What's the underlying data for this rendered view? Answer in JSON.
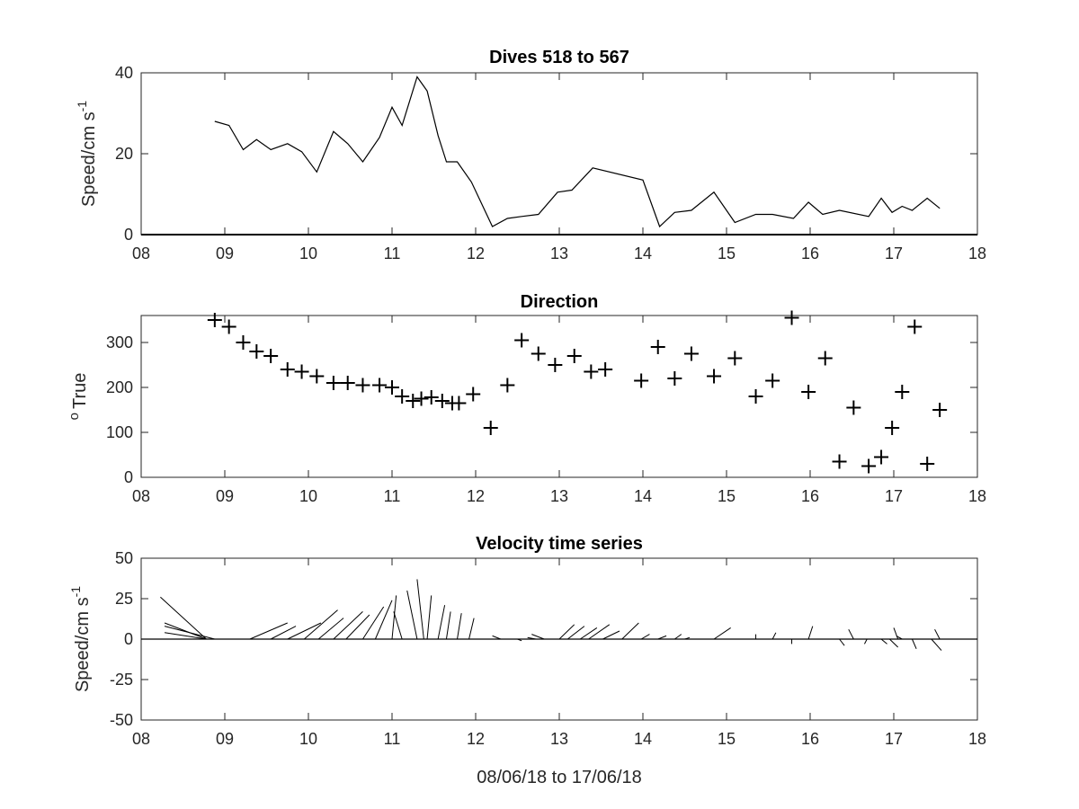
{
  "colors": {
    "line": "#000000",
    "axes": "#262626",
    "background": "#ffffff"
  },
  "xtick_labels": [
    "08",
    "09",
    "10",
    "11",
    "12",
    "13",
    "14",
    "15",
    "16",
    "17",
    "18"
  ],
  "xlabel": "08/06/18 to 17/06/18",
  "chart_data": [
    {
      "type": "line",
      "title": "Dives 518 to 567",
      "ylabel": "Speed/cm s",
      "ylabel_exponent": "-1",
      "xlim": [
        8,
        18
      ],
      "ylim": [
        0,
        40
      ],
      "yticks": [
        0,
        20,
        40
      ],
      "grid": false,
      "x": [
        8.88,
        9.05,
        9.22,
        9.38,
        9.55,
        9.75,
        9.92,
        10.1,
        10.3,
        10.47,
        10.65,
        10.85,
        11.0,
        11.12,
        11.3,
        11.42,
        11.55,
        11.65,
        11.78,
        11.95,
        12.2,
        12.38,
        12.55,
        12.75,
        12.98,
        13.15,
        13.4,
        14.0,
        14.2,
        14.38,
        14.58,
        14.85,
        15.1,
        15.35,
        15.55,
        15.8,
        15.98,
        16.15,
        16.35,
        16.7,
        16.85,
        16.98,
        17.1,
        17.22,
        17.4,
        17.55
      ],
      "y": [
        28,
        27,
        21,
        23.5,
        21,
        22.5,
        20.5,
        15.5,
        25.5,
        22.5,
        18,
        24,
        31.5,
        27,
        39,
        35.5,
        24.5,
        18,
        18,
        13,
        2,
        4,
        4.5,
        5,
        10.5,
        11,
        16.5,
        13.5,
        2,
        5.5,
        6,
        10.5,
        3,
        5,
        5,
        4,
        8,
        5,
        6,
        4.5,
        9,
        5.5,
        7,
        6,
        9,
        6.5
      ],
      "baseline_y": 0
    },
    {
      "type": "scatter",
      "title": "Direction",
      "ylabel": "True",
      "ylabel_prefix": "o",
      "marker": "+",
      "xlim": [
        8,
        18
      ],
      "ylim": [
        0,
        360
      ],
      "yticks": [
        0,
        100,
        200,
        300
      ],
      "grid": false,
      "x": [
        8.88,
        9.05,
        9.22,
        9.38,
        9.55,
        9.75,
        9.92,
        10.1,
        10.3,
        10.47,
        10.65,
        10.85,
        11.0,
        11.12,
        11.25,
        11.35,
        11.47,
        11.6,
        11.72,
        11.8,
        11.97,
        12.18,
        12.38,
        12.55,
        12.75,
        12.95,
        13.18,
        13.38,
        13.55,
        13.98,
        14.18,
        14.38,
        14.58,
        14.85,
        15.1,
        15.35,
        15.55,
        15.78,
        15.98,
        16.18,
        16.35,
        16.52,
        16.7,
        16.85,
        16.98,
        17.1,
        17.25,
        17.4,
        17.55
      ],
      "y": [
        350,
        335,
        300,
        280,
        270,
        240,
        235,
        225,
        210,
        210,
        205,
        205,
        200,
        180,
        170,
        175,
        178,
        170,
        165,
        165,
        185,
        110,
        205,
        305,
        275,
        250,
        270,
        235,
        240,
        215,
        290,
        220,
        275,
        225,
        265,
        180,
        215,
        355,
        190,
        265,
        35,
        155,
        25,
        45,
        110,
        190,
        335,
        30,
        150
      ]
    },
    {
      "type": "quiver",
      "title": "Velocity time series",
      "ylabel": "Speed/cm s",
      "ylabel_exponent": "-1",
      "xlim": [
        8,
        18
      ],
      "ylim": [
        -50,
        50
      ],
      "yticks": [
        -50,
        -25,
        0,
        25,
        50
      ],
      "ytick_labels": [
        "-50",
        "-25",
        "0",
        "25",
        "50"
      ],
      "grid": false,
      "sticks": [
        {
          "x": 8.78,
          "u": 0.55,
          "v": -26
        },
        {
          "x": 8.78,
          "u": 0.5,
          "v": -10
        },
        {
          "x": 8.78,
          "u": 0.5,
          "v": -4
        },
        {
          "x": 8.88,
          "u": 0.6,
          "v": -8
        },
        {
          "x": 9.3,
          "u": -0.45,
          "v": -10
        },
        {
          "x": 9.55,
          "u": -0.3,
          "v": -8
        },
        {
          "x": 9.75,
          "u": -0.4,
          "v": -10
        },
        {
          "x": 9.95,
          "u": -0.4,
          "v": -18
        },
        {
          "x": 10.12,
          "u": -0.3,
          "v": -13
        },
        {
          "x": 10.3,
          "u": -0.35,
          "v": -17
        },
        {
          "x": 10.45,
          "u": -0.28,
          "v": -15
        },
        {
          "x": 10.65,
          "u": -0.25,
          "v": -20
        },
        {
          "x": 10.8,
          "u": -0.2,
          "v": -24
        },
        {
          "x": 11.0,
          "u": -0.05,
          "v": -27
        },
        {
          "x": 11.12,
          "u": 0.1,
          "v": -17
        },
        {
          "x": 11.3,
          "u": 0.12,
          "v": -30
        },
        {
          "x": 11.38,
          "u": 0.08,
          "v": -37
        },
        {
          "x": 11.42,
          "u": -0.05,
          "v": -27
        },
        {
          "x": 11.55,
          "u": -0.08,
          "v": -21
        },
        {
          "x": 11.65,
          "u": -0.05,
          "v": -17
        },
        {
          "x": 11.78,
          "u": -0.05,
          "v": -16
        },
        {
          "x": 11.92,
          "u": -0.06,
          "v": -13
        },
        {
          "x": 12.15,
          "u": 0.05,
          "v": 0
        },
        {
          "x": 12.3,
          "u": 0.1,
          "v": -2
        },
        {
          "x": 12.5,
          "u": -0.05,
          "v": 1
        },
        {
          "x": 12.72,
          "u": 0.1,
          "v": -1
        },
        {
          "x": 12.82,
          "u": 0.15,
          "v": -3
        },
        {
          "x": 13.0,
          "u": -0.18,
          "v": -9
        },
        {
          "x": 13.1,
          "u": -0.2,
          "v": -8
        },
        {
          "x": 13.25,
          "u": -0.2,
          "v": -7
        },
        {
          "x": 13.35,
          "u": -0.25,
          "v": -9
        },
        {
          "x": 13.52,
          "u": -0.2,
          "v": -5
        },
        {
          "x": 13.75,
          "u": -0.2,
          "v": -10
        },
        {
          "x": 13.98,
          "u": -0.1,
          "v": -3
        },
        {
          "x": 14.18,
          "u": -0.1,
          "v": -2
        },
        {
          "x": 14.38,
          "u": -0.08,
          "v": -3
        },
        {
          "x": 14.5,
          "u": -0.06,
          "v": -1
        },
        {
          "x": 14.85,
          "u": -0.2,
          "v": -7
        },
        {
          "x": 15.35,
          "u": 0,
          "v": -3
        },
        {
          "x": 15.55,
          "u": -0.04,
          "v": -4
        },
        {
          "x": 15.78,
          "u": 0,
          "v": 3
        },
        {
          "x": 15.98,
          "u": -0.05,
          "v": -8
        },
        {
          "x": 16.35,
          "u": -0.06,
          "v": 4
        },
        {
          "x": 16.52,
          "u": 0.06,
          "v": -6
        },
        {
          "x": 16.68,
          "u": 0.03,
          "v": 3
        },
        {
          "x": 16.85,
          "u": -0.07,
          "v": 3
        },
        {
          "x": 16.95,
          "u": -0.1,
          "v": 5
        },
        {
          "x": 17.05,
          "u": 0.05,
          "v": -7
        },
        {
          "x": 17.1,
          "u": 0.07,
          "v": -2
        },
        {
          "x": 17.22,
          "u": -0.05,
          "v": 6
        },
        {
          "x": 17.45,
          "u": -0.12,
          "v": 7
        },
        {
          "x": 17.55,
          "u": 0.06,
          "v": -6
        }
      ]
    }
  ]
}
